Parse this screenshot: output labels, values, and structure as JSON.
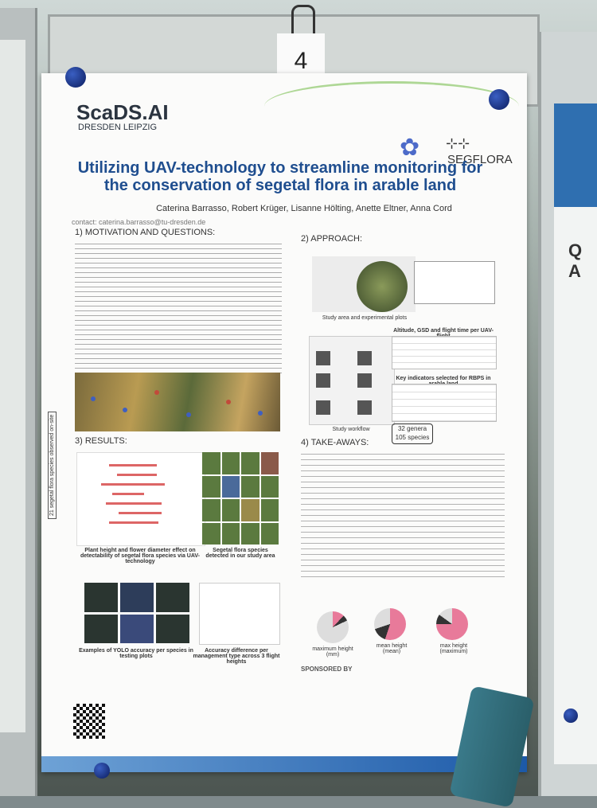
{
  "board_number": "4",
  "logo": {
    "name": "ScaDS.AI",
    "sub": "DRESDEN LEIPZIG"
  },
  "project": "SEGFLORA",
  "title": "Utilizing UAV-technology to streamline monitoring for the conservation of segetal flora in arable land",
  "authors": "Caterina Barrasso, Robert Krüger, Lisanne Hölting, Anette Eltner, Anna Cord",
  "contact": "contact: caterina.barrasso@tu-dresden.de",
  "sections": {
    "motivation": "1) MOTIVATION AND QUESTIONS:",
    "approach": "2) APPROACH:",
    "results": "3) RESULTS:",
    "takeaways": "4) TAKE-AWAYS:"
  },
  "approach": {
    "map_caption": "Study area and experimental plots",
    "workflow_caption": "Study workflow",
    "table1_title": "Altitude, GSD and flight time per UAV-flight",
    "table2_title": "Key indicators selected for RBPS in arable land",
    "genera": "32 genera",
    "species": "105 species"
  },
  "results": {
    "vertical_label": "21 segetal flora species observed on-site",
    "plot1_caption": "Plant height and flower diameter effect on detectability of segetal flora species via UAV-technology",
    "grid_caption": "Segetal flora species detected in our study area",
    "yolo_caption": "Examples of YOLO accuracy per species in testing plots",
    "box_caption": "Accuracy difference per management type across 3 flight heights"
  },
  "pies": [
    "maximum height (mm)",
    "mean height (mean)",
    "max height (maximum)"
  ],
  "sponsored_by": "SPONSORED BY",
  "colors": {
    "title": "#1f4e8f",
    "accent_blue": "#1c59a8",
    "pink": "#e87a9a"
  }
}
